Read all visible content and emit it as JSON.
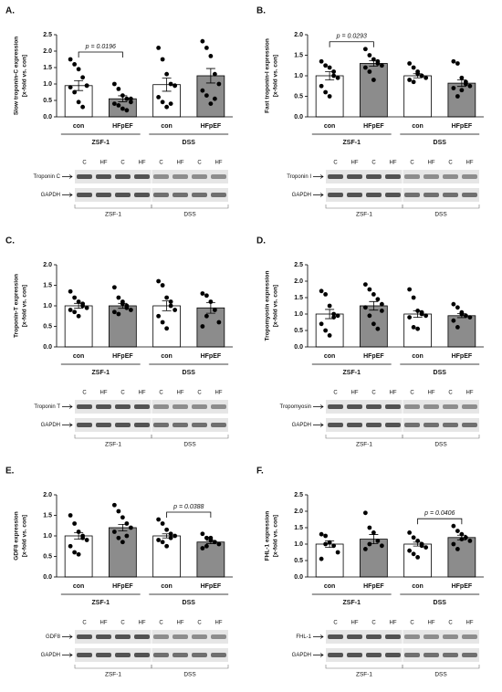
{
  "chart_data": [
    {
      "type": "bar",
      "panel": "A.",
      "y_label": [
        "Slow troponin-C expression",
        "[x-fold vs. con]"
      ],
      "categories": [
        "con",
        "HFpEF",
        "con",
        "HFpEF"
      ],
      "groups": [
        "ZSF-1",
        "DSS"
      ],
      "colors": [
        "#ffffff",
        "#8c8c8c",
        "#ffffff",
        "#8c8c8c"
      ],
      "values": [
        0.95,
        0.55,
        0.98,
        1.25
      ],
      "errors": [
        0.15,
        0.09,
        0.2,
        0.22
      ],
      "points": [
        [
          1.75,
          1.6,
          1.45,
          1.2,
          0.95,
          0.9,
          0.75,
          0.45,
          0.3,
          0.95
        ],
        [
          1.0,
          0.85,
          0.65,
          0.55,
          0.45,
          0.4,
          0.35,
          0.25,
          0.2,
          0.55
        ],
        [
          2.1,
          1.75,
          1.3,
          1.0,
          0.95,
          0.6,
          0.45,
          0.3,
          0.4,
          0.95
        ],
        [
          2.3,
          2.1,
          1.85,
          1.3,
          1.0,
          0.8,
          0.65,
          0.4,
          0.55
        ]
      ],
      "ylim": [
        0,
        2.5
      ],
      "yticks": [
        {
          "value": 0,
          "label": "0.0"
        },
        0.5,
        {
          "value": 1,
          "label": "1.0"
        },
        1.5,
        {
          "value": 2,
          "label": "2.0"
        },
        2.5
      ],
      "annotation": {
        "label": "p = 0.0196",
        "between": [
          0,
          1
        ]
      },
      "blot": {
        "rows": [
          "Troponin C",
          "GAPDH"
        ],
        "lanes": [
          "C",
          "HF",
          "C",
          "HF",
          "C",
          "HF",
          "C",
          "HF"
        ],
        "groups": [
          "ZSF-1",
          "DSS"
        ]
      }
    },
    {
      "type": "bar",
      "panel": "B.",
      "y_label": [
        "Fast troponin-I expression",
        "[x-fold vs. con]"
      ],
      "categories": [
        "con",
        "HFpEF",
        "con",
        "HFpEF"
      ],
      "groups": [
        "ZSF-1",
        "DSS"
      ],
      "colors": [
        "#ffffff",
        "#8c8c8c",
        "#ffffff",
        "#8c8c8c"
      ],
      "values": [
        1.0,
        1.3,
        1.0,
        0.82
      ],
      "errors": [
        0.1,
        0.07,
        0.05,
        0.08
      ],
      "points": [
        [
          1.35,
          1.25,
          1.2,
          1.0,
          0.95,
          0.75,
          0.6,
          0.5,
          1.1
        ],
        [
          1.65,
          1.5,
          1.4,
          1.3,
          1.25,
          1.2,
          1.1,
          0.9,
          1.35
        ],
        [
          1.3,
          1.2,
          1.1,
          1.0,
          0.95,
          0.9,
          0.85,
          1.05
        ],
        [
          1.35,
          1.3,
          0.95,
          0.85,
          0.75,
          0.7,
          0.5,
          0.65,
          0.8
        ]
      ],
      "ylim": [
        0,
        2
      ],
      "yticks": [
        {
          "value": 0,
          "label": "0.0"
        },
        0.5,
        {
          "value": 1,
          "label": "1.0"
        },
        1.5,
        {
          "value": 2,
          "label": "2.0"
        }
      ],
      "annotation": {
        "label": "p = 0.0293",
        "between": [
          0,
          1
        ]
      },
      "blot": {
        "rows": [
          "Troponin I",
          "GAPDH"
        ],
        "lanes": [
          "C",
          "HF",
          "C",
          "HF",
          "C",
          "HF",
          "C",
          "HF"
        ],
        "groups": [
          "ZSF-1",
          "DSS"
        ]
      }
    },
    {
      "type": "bar",
      "panel": "C.",
      "y_label": [
        "Troponin-T expression",
        "[x-fold vs. con]"
      ],
      "categories": [
        "con",
        "HFpEF",
        "con",
        "HFpEF"
      ],
      "groups": [
        "ZSF-1",
        "DSS"
      ],
      "colors": [
        "#ffffff",
        "#8c8c8c",
        "#ffffff",
        "#8c8c8c"
      ],
      "values": [
        1.0,
        1.0,
        1.0,
        0.95
      ],
      "errors": [
        0.06,
        0.06,
        0.12,
        0.13
      ],
      "points": [
        [
          1.35,
          1.2,
          1.1,
          1.0,
          0.95,
          0.9,
          0.85,
          0.75,
          1.05
        ],
        [
          1.45,
          1.2,
          1.1,
          1.0,
          0.9,
          0.85,
          0.8,
          1.05,
          0.95
        ],
        [
          1.6,
          1.5,
          1.2,
          1.1,
          0.9,
          0.75,
          0.6,
          0.45,
          1.0
        ],
        [
          1.3,
          1.25,
          1.1,
          0.9,
          0.6,
          0.5,
          0.75
        ]
      ],
      "ylim": [
        0,
        2
      ],
      "yticks": [
        {
          "value": 0,
          "label": "0.0"
        },
        0.5,
        {
          "value": 1,
          "label": "1.0"
        },
        1.5,
        {
          "value": 2,
          "label": "2.0"
        }
      ],
      "blot": {
        "rows": [
          "Troponin T",
          "GAPDH"
        ],
        "lanes": [
          "C",
          "HF",
          "C",
          "HF",
          "C",
          "HF",
          "C",
          "HF"
        ],
        "groups": [
          "ZSF-1",
          "DSS"
        ]
      }
    },
    {
      "type": "bar",
      "panel": "D.",
      "y_label": [
        "Tropomyosin expression",
        "[x-fold vs. con]"
      ],
      "categories": [
        "con",
        "HFpEF",
        "con",
        "HFpEF"
      ],
      "groups": [
        "ZSF-1",
        "DSS"
      ],
      "colors": [
        "#ffffff",
        "#8c8c8c",
        "#ffffff",
        "#8c8c8c"
      ],
      "values": [
        1.0,
        1.25,
        1.0,
        0.95
      ],
      "errors": [
        0.14,
        0.13,
        0.1,
        0.06
      ],
      "points": [
        [
          1.7,
          1.6,
          1.25,
          1.0,
          0.95,
          0.7,
          0.5,
          0.35,
          0.9
        ],
        [
          1.9,
          1.75,
          1.6,
          1.45,
          1.3,
          1.2,
          0.95,
          0.7,
          0.55,
          1.1
        ],
        [
          1.75,
          1.5,
          1.1,
          1.0,
          0.95,
          0.9,
          0.6,
          0.55,
          1.05
        ],
        [
          1.3,
          1.2,
          1.05,
          0.95,
          0.9,
          0.8,
          0.6,
          1.0
        ]
      ],
      "ylim": [
        0,
        2.5
      ],
      "yticks": [
        {
          "value": 0,
          "label": "0.0"
        },
        0.5,
        {
          "value": 1,
          "label": "1.0"
        },
        1.5,
        {
          "value": 2,
          "label": "2.0"
        },
        2.5
      ],
      "blot": {
        "rows": [
          "Tropomyosin",
          "GAPDH"
        ],
        "lanes": [
          "C",
          "HF",
          "C",
          "HF",
          "C",
          "HF",
          "C",
          "HF"
        ],
        "groups": [
          "ZSF-1",
          "DSS"
        ]
      }
    },
    {
      "type": "bar",
      "panel": "E.",
      "y_label": [
        "GDF8 expression",
        "[x-fold vs. con]"
      ],
      "categories": [
        "con",
        "HFpEF",
        "con",
        "HFpEF"
      ],
      "groups": [
        "ZSF-1",
        "DSS"
      ],
      "colors": [
        "#ffffff",
        "#8c8c8c",
        "#ffffff",
        "#8c8c8c"
      ],
      "values": [
        1.0,
        1.2,
        1.0,
        0.85
      ],
      "errors": [
        0.08,
        0.08,
        0.05,
        0.04
      ],
      "points": [
        [
          1.5,
          1.3,
          1.1,
          1.0,
          0.9,
          0.75,
          0.6,
          0.55,
          0.95
        ],
        [
          1.75,
          1.6,
          1.45,
          1.3,
          1.2,
          1.1,
          0.95,
          0.85,
          1.0
        ],
        [
          1.4,
          1.3,
          1.15,
          1.05,
          1.0,
          0.9,
          0.85,
          0.75,
          0.95
        ],
        [
          1.05,
          0.95,
          0.9,
          0.85,
          0.8,
          0.7,
          0.75,
          0.95
        ]
      ],
      "ylim": [
        0,
        2
      ],
      "yticks": [
        {
          "value": 0,
          "label": "0.0"
        },
        0.5,
        {
          "value": 1,
          "label": "1.0"
        },
        1.5,
        {
          "value": 2,
          "label": "2.0"
        }
      ],
      "annotation": {
        "label": "p = 0.0388",
        "between": [
          2,
          3
        ]
      },
      "blot": {
        "rows": [
          "GDF8",
          "GAPDH"
        ],
        "lanes": [
          "C",
          "HF",
          "C",
          "HF",
          "C",
          "HF",
          "C",
          "HF"
        ],
        "groups": [
          "ZSF-1",
          "DSS"
        ]
      }
    },
    {
      "type": "bar",
      "panel": "F.",
      "y_label": [
        "FHL-1 expression",
        "[x-fold vs. con]"
      ],
      "categories": [
        "con",
        "HFpEF",
        "con",
        "HFpEF"
      ],
      "groups": [
        "ZSF-1",
        "DSS"
      ],
      "colors": [
        "#ffffff",
        "#8c8c8c",
        "#ffffff",
        "#8c8c8c"
      ],
      "values": [
        1.0,
        1.15,
        1.0,
        1.2
      ],
      "errors": [
        0.1,
        0.14,
        0.06,
        0.07
      ],
      "points": [
        [
          1.3,
          1.25,
          1.05,
          0.95,
          0.75,
          0.55,
          1.0
        ],
        [
          1.95,
          1.5,
          1.35,
          1.1,
          0.95,
          0.85,
          1.0
        ],
        [
          1.35,
          1.2,
          1.1,
          1.0,
          0.9,
          0.8,
          0.7,
          0.6,
          0.95
        ],
        [
          1.55,
          1.4,
          1.3,
          1.2,
          1.1,
          1.0,
          0.85,
          1.15
        ]
      ],
      "ylim": [
        0,
        2.5
      ],
      "yticks": [
        {
          "value": 0,
          "label": "0.0"
        },
        0.5,
        {
          "value": 1,
          "label": "1.0"
        },
        1.5,
        {
          "value": 2,
          "label": "2.0"
        },
        2.5
      ],
      "annotation": {
        "label": "p = 0.0406",
        "between": [
          2,
          3
        ]
      },
      "blot": {
        "rows": [
          "FHL-1",
          "GAPDH"
        ],
        "lanes": [
          "C",
          "HF",
          "C",
          "HF",
          "C",
          "HF",
          "C",
          "HF"
        ],
        "groups": [
          "ZSF-1",
          "DSS"
        ]
      }
    }
  ]
}
